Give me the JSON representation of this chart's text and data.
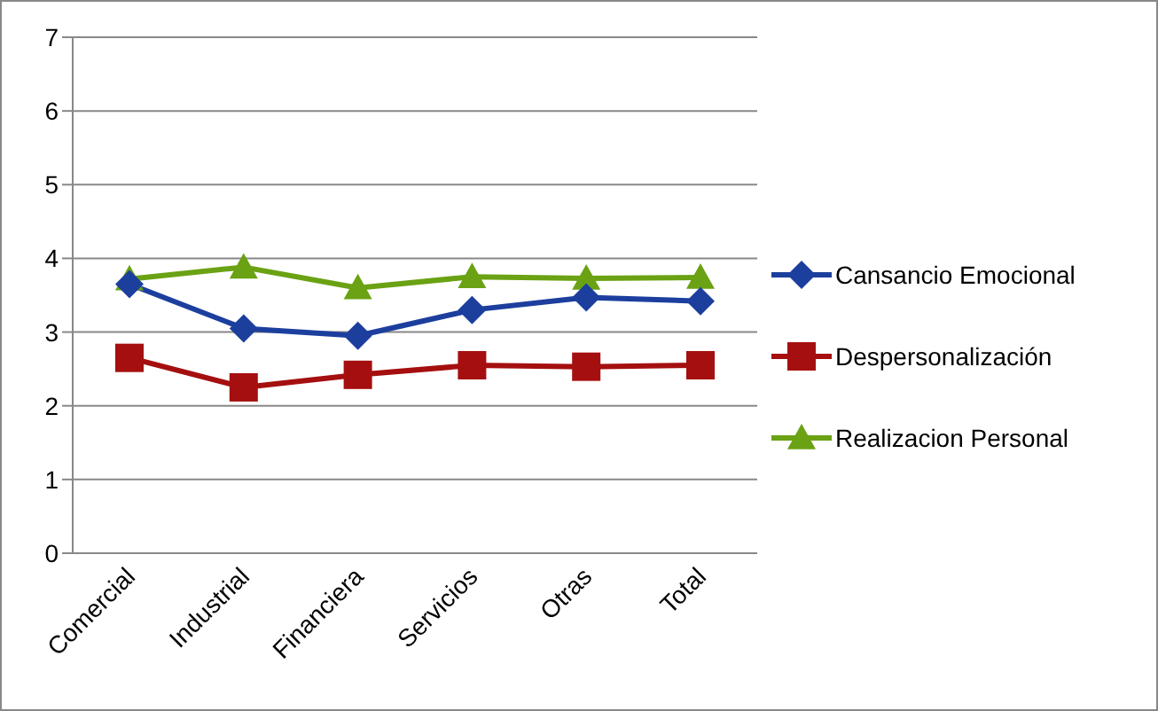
{
  "chart_data": {
    "type": "line",
    "categories": [
      "Comercial",
      "Industrial",
      "Financiera",
      "Servicios",
      "Otras",
      "Total"
    ],
    "series": [
      {
        "name": "Cansancio Emocional",
        "color": "#1c3f9e",
        "values": [
          3.65,
          3.05,
          2.95,
          3.3,
          3.47,
          3.42
        ],
        "marker": "diamond"
      },
      {
        "name": "Despersonalización",
        "color": "#a50f0f",
        "values": [
          2.65,
          2.25,
          2.42,
          2.55,
          2.53,
          2.55
        ],
        "marker": "square"
      },
      {
        "name": "Realizacion Personal",
        "color": "#6aa213",
        "values": [
          3.72,
          3.88,
          3.6,
          3.75,
          3.73,
          3.74
        ],
        "marker": "triangle"
      }
    ],
    "ylim": [
      0,
      7
    ],
    "yticks": [
      0,
      1,
      2,
      3,
      4,
      5,
      6,
      7
    ],
    "grid": "y",
    "legend": "right"
  }
}
